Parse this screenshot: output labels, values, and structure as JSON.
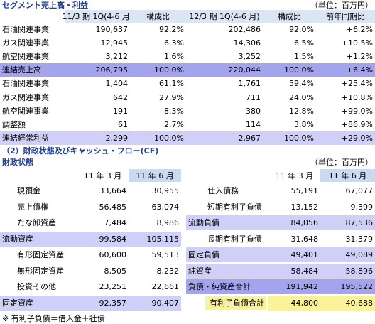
{
  "segment": {
    "title": "セグメント売上高・利益",
    "unit": "（単位：百万円）",
    "header": [
      "11/3 期 1Q(4-6 月)",
      "構成比",
      "12/3 期 1Q(4-6 月)",
      "構成比",
      "前年同期比"
    ],
    "header_color": "#dbe6f5",
    "rows": [
      {
        "cells": [
          "石油関連事業",
          "190,637",
          "92.2%",
          "202,486",
          "92.0%",
          "+6.2%"
        ]
      },
      {
        "cells": [
          "ガス関連事業",
          "12,945",
          "6.3%",
          "14,306",
          "6.5%",
          "+10.5%"
        ]
      },
      {
        "cells": [
          "航空関連事業",
          "3,212",
          "1.6%",
          "3,252",
          "1.5%",
          "+1.2%"
        ]
      },
      {
        "cells": [
          "連結売上高",
          "206,795",
          "100.0%",
          "220,044",
          "100.0%",
          "+6.4%"
        ],
        "color": "#a3a3ee"
      },
      {
        "cells": [
          "石油関連事業",
          "1,404",
          "61.1%",
          "1,761",
          "59.4%",
          "+25.4%"
        ]
      },
      {
        "cells": [
          "ガス関連事業",
          "642",
          "27.9%",
          "711",
          "24.0%",
          "+10.8%"
        ]
      },
      {
        "cells": [
          "航空関連事業",
          "191",
          "8.3%",
          "380",
          "12.8%",
          "+99.0%"
        ]
      },
      {
        "cells": [
          "調整額",
          "61",
          "2.7%",
          "114",
          "3.8%",
          "+86.9%"
        ]
      },
      {
        "cells": [
          "連結経常利益",
          "2,299",
          "100.0%",
          "2,967",
          "100.0%",
          "+29.0%"
        ],
        "color": "#cfcff8"
      }
    ]
  },
  "financial": {
    "title": "（2）財政状態及びキャッシュ・フロー(CF)",
    "subtitle": "財政状態",
    "unit": "（単位：百万円）",
    "header": [
      "11 年 3 月",
      "11 年 6 月"
    ],
    "header_color": "#c9daf2",
    "left": [
      {
        "cells": [
          "現預金",
          "33,664",
          "30,955"
        ],
        "indent": true
      },
      {
        "cells": [
          "売上債権",
          "56,485",
          "63,074"
        ],
        "indent": true
      },
      {
        "cells": [
          "たな卸資産",
          "7,484",
          "8,986"
        ],
        "indent": true
      },
      {
        "cells": [
          "流動資産",
          "99,584",
          "105,115"
        ],
        "color": "#cfcff8"
      },
      {
        "cells": [
          "有形固定資産",
          "60,600",
          "59,513"
        ],
        "indent": true
      },
      {
        "cells": [
          "無形固定資産",
          "8,505",
          "8,232"
        ],
        "indent": true
      },
      {
        "cells": [
          "投資その他",
          "23,251",
          "22,661"
        ],
        "indent": true
      },
      {
        "cells": [
          "固定資産",
          "92,357",
          "90,407"
        ],
        "color": "#cfcff8"
      }
    ],
    "right": [
      {
        "cells": [
          "仕入債務",
          "55,191",
          "67,077"
        ],
        "indent": true
      },
      {
        "cells": [
          "短期有利子負債",
          "13,152",
          "9,309"
        ],
        "indent": true
      },
      {
        "cells": [
          "流動負債",
          "84,056",
          "87,536"
        ],
        "color": "#cfcff8"
      },
      {
        "cells": [
          "長期有利子負債",
          "31,648",
          "31,379"
        ],
        "indent": true
      },
      {
        "cells": [
          "固定負債",
          "49,401",
          "49,089"
        ],
        "color": "#cfcff8"
      },
      {
        "cells": [
          "純資産",
          "58,484",
          "58,896"
        ],
        "color": "#cfcff8"
      },
      {
        "cells": [
          "負債・純資産合計",
          "191,942",
          "195,522"
        ],
        "color": "#a3a3ee"
      },
      {
        "cells": [
          "有利子負債合計",
          "44,800",
          "40,688"
        ],
        "color": "#faf39a",
        "indent": true
      }
    ],
    "note": "※ 有利子負債＝借入金＋社債"
  }
}
